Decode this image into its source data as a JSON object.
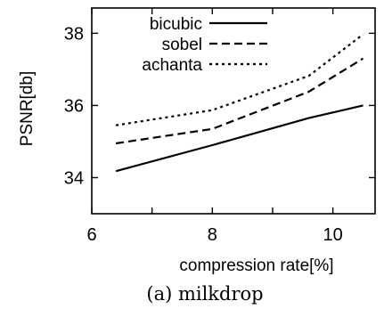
{
  "chart_data": {
    "type": "line",
    "caption": "(a) milkdrop",
    "xlabel": "compression rate[%]",
    "ylabel": "PSNR[db]",
    "xlim": [
      6,
      10.7
    ],
    "ylim": [
      33,
      38.7
    ],
    "xticks": [
      6,
      8,
      10
    ],
    "yticks": [
      34,
      36,
      38
    ],
    "legend_position": "top-left",
    "series": [
      {
        "name": "bicubic",
        "style": "solid",
        "x": [
          6.4,
          8.0,
          9.6,
          10.5
        ],
        "y": [
          34.18,
          34.9,
          35.65,
          36.0
        ]
      },
      {
        "name": "sobel",
        "style": "dashed",
        "x": [
          6.4,
          8.0,
          9.6,
          10.5
        ],
        "y": [
          34.95,
          35.35,
          36.38,
          37.3
        ]
      },
      {
        "name": "achanta",
        "style": "dotted",
        "x": [
          6.4,
          8.0,
          9.6,
          10.5
        ],
        "y": [
          35.45,
          35.87,
          36.82,
          37.97
        ]
      }
    ]
  }
}
